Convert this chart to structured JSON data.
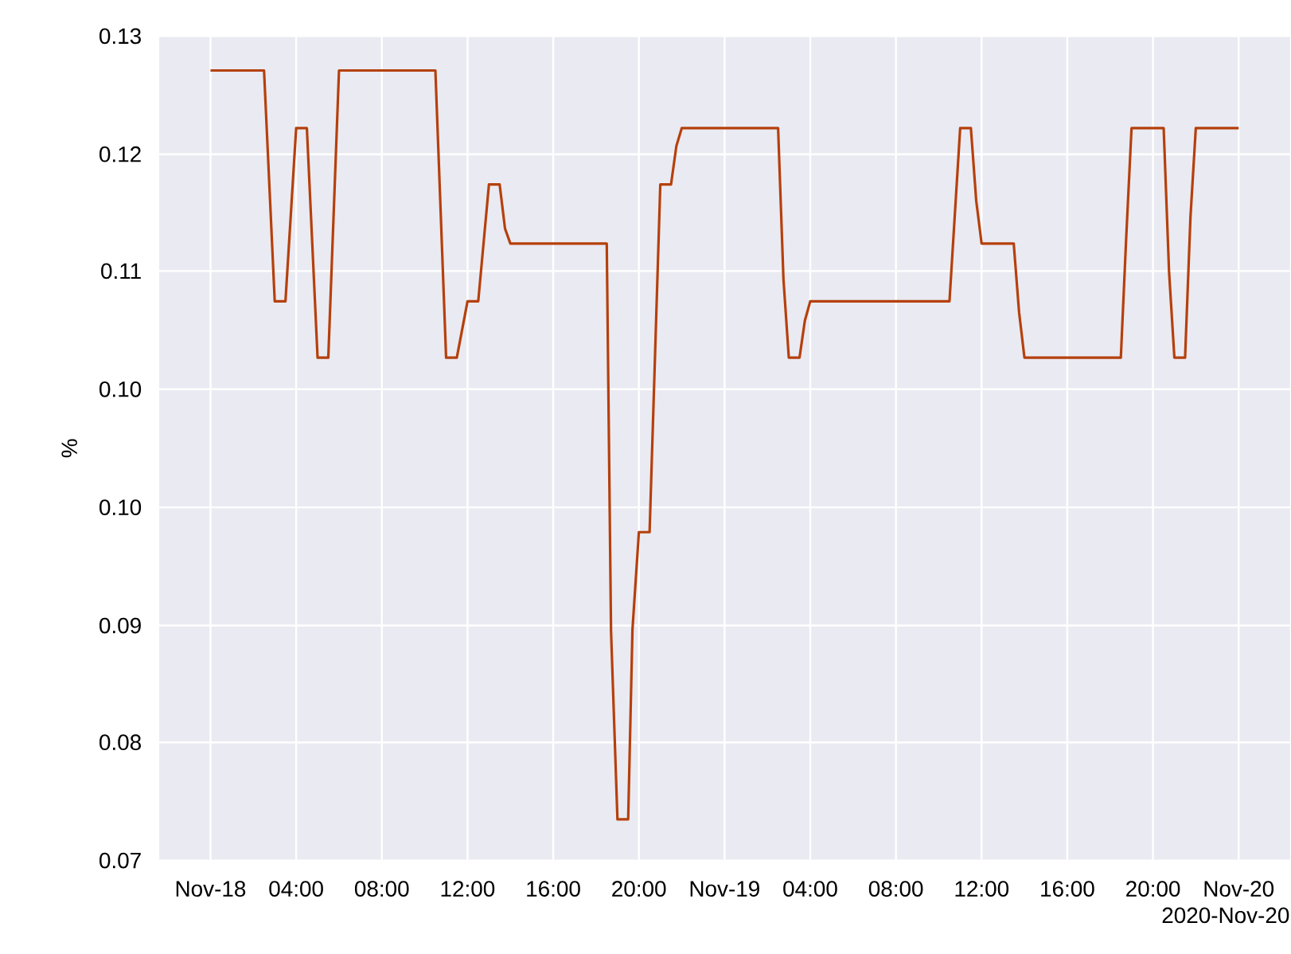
{
  "chart_data": {
    "type": "line",
    "ylabel": "%",
    "color": "#b5400c",
    "grid": true,
    "x": [
      "2020-11-18T00:00",
      "2020-11-18T02:30",
      "2020-11-18T03:00",
      "2020-11-18T03:30",
      "2020-11-18T04:00",
      "2020-11-18T04:30",
      "2020-11-18T05:00",
      "2020-11-18T05:30",
      "2020-11-18T06:00",
      "2020-11-18T10:30",
      "2020-11-18T11:00",
      "2020-11-18T11:30",
      "2020-11-18T12:00",
      "2020-11-18T12:30",
      "2020-11-18T13:00",
      "2020-11-18T13:30",
      "2020-11-18T13:45",
      "2020-11-18T14:00",
      "2020-11-18T18:30",
      "2020-11-18T18:42",
      "2020-11-18T19:00",
      "2020-11-18T19:30",
      "2020-11-18T19:42",
      "2020-11-18T20:00",
      "2020-11-18T20:30",
      "2020-11-18T21:00",
      "2020-11-18T21:30",
      "2020-11-18T21:45",
      "2020-11-18T22:00",
      "2020-11-19T02:30",
      "2020-11-19T02:45",
      "2020-11-19T03:00",
      "2020-11-19T03:30",
      "2020-11-19T03:45",
      "2020-11-19T04:00",
      "2020-11-19T10:30",
      "2020-11-19T11:00",
      "2020-11-19T11:30",
      "2020-11-19T11:45",
      "2020-11-19T12:00",
      "2020-11-19T13:30",
      "2020-11-19T13:45",
      "2020-11-19T14:00",
      "2020-11-19T18:30",
      "2020-11-19T18:45",
      "2020-11-19T19:00",
      "2020-11-19T20:30",
      "2020-11-19T20:45",
      "2020-11-19T21:00",
      "2020-11-19T21:30",
      "2020-11-19T21:45",
      "2020-11-19T22:00",
      "2020-11-20T00:00"
    ],
    "values": [
      0.1275,
      0.1275,
      0.1107,
      0.1107,
      0.1233,
      0.1233,
      0.1066,
      0.1066,
      0.1275,
      0.1275,
      0.1066,
      0.1066,
      0.1107,
      0.1107,
      0.1192,
      0.1192,
      0.116,
      0.1149,
      0.1149,
      0.0867,
      0.073,
      0.073,
      0.0868,
      0.0939,
      0.0939,
      0.1192,
      0.1192,
      0.122,
      0.1233,
      0.1233,
      0.1123,
      0.1066,
      0.1066,
      0.1093,
      0.1107,
      0.1107,
      0.1233,
      0.1233,
      0.118,
      0.1149,
      0.1149,
      0.1099,
      0.1066,
      0.1066,
      0.1153,
      0.1233,
      0.1233,
      0.1129,
      0.1066,
      0.1066,
      0.1168,
      0.1233,
      0.1233
    ],
    "xlim": [
      "2020-11-17T21:36",
      "2020-11-20T02:24"
    ],
    "ylim": [
      0.07,
      0.13
    ],
    "xticks": [
      {
        "value": "2020-11-18T00:00",
        "label": "Nov-18"
      },
      {
        "value": "2020-11-18T04:00",
        "label": "04:00"
      },
      {
        "value": "2020-11-18T08:00",
        "label": "08:00"
      },
      {
        "value": "2020-11-18T12:00",
        "label": "12:00"
      },
      {
        "value": "2020-11-18T16:00",
        "label": "16:00"
      },
      {
        "value": "2020-11-18T20:00",
        "label": "20:00"
      },
      {
        "value": "2020-11-19T00:00",
        "label": "Nov-19"
      },
      {
        "value": "2020-11-19T04:00",
        "label": "04:00"
      },
      {
        "value": "2020-11-19T08:00",
        "label": "08:00"
      },
      {
        "value": "2020-11-19T12:00",
        "label": "12:00"
      },
      {
        "value": "2020-11-19T16:00",
        "label": "16:00"
      },
      {
        "value": "2020-11-19T20:00",
        "label": "20:00"
      },
      {
        "value": "2020-11-20T00:00",
        "label": "Nov-20"
      }
    ],
    "yticks": [
      {
        "value": 0.07,
        "label": "0.07"
      },
      {
        "value": 0.0786,
        "label": "0.08"
      },
      {
        "value": 0.0871,
        "label": "0.09"
      },
      {
        "value": 0.0957,
        "label": "0.10"
      },
      {
        "value": 0.1043,
        "label": "0.10"
      },
      {
        "value": 0.1129,
        "label": "0.11"
      },
      {
        "value": 0.1214,
        "label": "0.12"
      },
      {
        "value": 0.13,
        "label": "0.13"
      }
    ],
    "annotations": [
      "2020-Nov-20"
    ]
  }
}
